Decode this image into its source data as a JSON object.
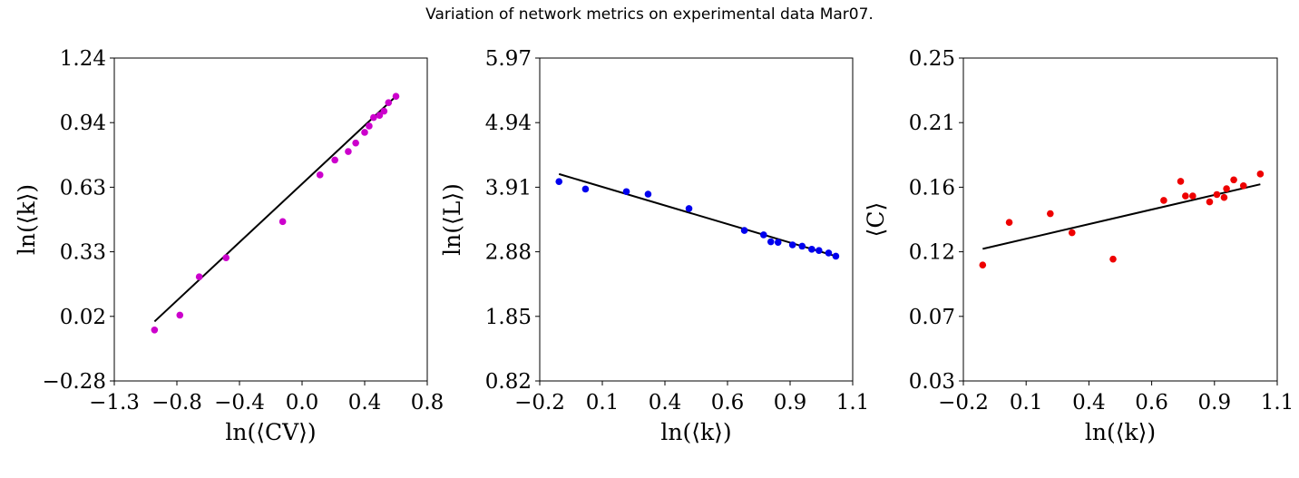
{
  "suptitle": "Variation of network metrics on experimental data Mar07.",
  "colors": {
    "magenta": "#cc00cc",
    "blue": "#0000ee",
    "red": "#ee0000",
    "fit": "#000000"
  },
  "chart_data": [
    {
      "type": "scatter",
      "xlabel": "ln(⟨CV⟩)",
      "ylabel": "ln(⟨k⟩)",
      "xlim": [
        -1.3,
        0.8
      ],
      "ylim": [
        -0.28,
        1.24
      ],
      "xticks": [
        "−1.3",
        "−0.8",
        "−0.4",
        "0.0",
        "0.4",
        "0.8"
      ],
      "yticks": [
        "−0.28",
        "0.02",
        "0.33",
        "0.63",
        "0.94",
        "1.24"
      ],
      "marker_color": "#cc00cc",
      "points": [
        [
          -1.03,
          -0.04
        ],
        [
          -0.86,
          0.03
        ],
        [
          -0.73,
          0.21
        ],
        [
          -0.55,
          0.3
        ],
        [
          -0.17,
          0.47
        ],
        [
          0.08,
          0.69
        ],
        [
          0.18,
          0.76
        ],
        [
          0.27,
          0.8
        ],
        [
          0.32,
          0.84
        ],
        [
          0.38,
          0.89
        ],
        [
          0.41,
          0.92
        ],
        [
          0.44,
          0.96
        ],
        [
          0.48,
          0.97
        ],
        [
          0.51,
          0.99
        ],
        [
          0.54,
          1.03
        ],
        [
          0.59,
          1.06
        ]
      ],
      "fit_line": [
        [
          -1.03,
          0.0
        ],
        [
          0.59,
          1.06
        ]
      ]
    },
    {
      "type": "scatter",
      "xlabel": "ln(⟨k⟩)",
      "ylabel": "ln(⟨L⟩)",
      "xlim": [
        -0.2,
        1.1
      ],
      "ylim": [
        0.82,
        5.97
      ],
      "xticks": [
        "−0.2",
        "0.1",
        "0.4",
        "0.6",
        "0.9",
        "1.1"
      ],
      "yticks": [
        "0.82",
        "1.85",
        "2.88",
        "3.91",
        "4.94",
        "5.97"
      ],
      "marker_color": "#0000ee",
      "points": [
        [
          -0.12,
          4.0
        ],
        [
          -0.01,
          3.88
        ],
        [
          0.16,
          3.84
        ],
        [
          0.25,
          3.8
        ],
        [
          0.42,
          3.57
        ],
        [
          0.65,
          3.22
        ],
        [
          0.73,
          3.15
        ],
        [
          0.76,
          3.04
        ],
        [
          0.79,
          3.03
        ],
        [
          0.85,
          2.99
        ],
        [
          0.89,
          2.97
        ],
        [
          0.93,
          2.92
        ],
        [
          0.96,
          2.9
        ],
        [
          1.0,
          2.86
        ],
        [
          1.03,
          2.81
        ]
      ],
      "fit_line": [
        [
          -0.12,
          4.12
        ],
        [
          1.03,
          2.81
        ]
      ]
    },
    {
      "type": "scatter",
      "xlabel": "ln(⟨k⟩)",
      "ylabel": "⟨C⟩",
      "xlim": [
        -0.2,
        1.1
      ],
      "ylim": [
        0.03,
        0.25
      ],
      "xticks": [
        "−0.2",
        "0.1",
        "0.4",
        "0.6",
        "0.9",
        "1.1"
      ],
      "yticks": [
        "0.03",
        "0.07",
        "0.12",
        "0.16",
        "0.21",
        "0.25"
      ],
      "marker_color": "#ee0000",
      "points": [
        [
          -0.12,
          0.109
        ],
        [
          -0.01,
          0.138
        ],
        [
          0.16,
          0.144
        ],
        [
          0.25,
          0.131
        ],
        [
          0.42,
          0.113
        ],
        [
          0.63,
          0.153
        ],
        [
          0.7,
          0.166
        ],
        [
          0.72,
          0.156
        ],
        [
          0.75,
          0.156
        ],
        [
          0.82,
          0.152
        ],
        [
          0.85,
          0.157
        ],
        [
          0.88,
          0.155
        ],
        [
          0.89,
          0.161
        ],
        [
          0.92,
          0.167
        ],
        [
          0.96,
          0.163
        ],
        [
          1.03,
          0.171
        ]
      ],
      "fit_line": [
        [
          -0.12,
          0.12
        ],
        [
          1.03,
          0.164
        ]
      ]
    }
  ]
}
